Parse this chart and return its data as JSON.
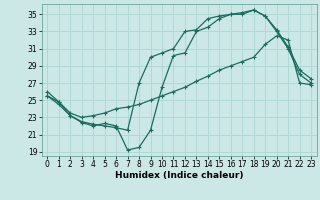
{
  "xlabel": "Humidex (Indice chaleur)",
  "bg_color": "#cce8e6",
  "grid_color": "#b0d8d5",
  "line_color": "#1a6b5e",
  "xlim": [
    -0.5,
    23.5
  ],
  "ylim": [
    18.5,
    36.2
  ],
  "xticks": [
    0,
    1,
    2,
    3,
    4,
    5,
    6,
    7,
    8,
    9,
    10,
    11,
    12,
    13,
    14,
    15,
    16,
    17,
    18,
    19,
    20,
    21,
    22,
    23
  ],
  "yticks": [
    19,
    21,
    23,
    25,
    27,
    29,
    31,
    33,
    35
  ],
  "line1_x": [
    0,
    1,
    2,
    3,
    4,
    5,
    6,
    7,
    8,
    9,
    10,
    11,
    12,
    13,
    14,
    15,
    16,
    17,
    18,
    19,
    20,
    21,
    22,
    23
  ],
  "line1_y": [
    26.0,
    24.8,
    23.2,
    22.5,
    22.2,
    22.0,
    21.8,
    21.5,
    27.0,
    30.0,
    30.5,
    31.0,
    33.0,
    33.2,
    34.5,
    34.8,
    35.0,
    35.2,
    35.5,
    34.8,
    33.2,
    31.2,
    28.5,
    27.5
  ],
  "line2_x": [
    0,
    1,
    2,
    3,
    4,
    5,
    6,
    7,
    8,
    9,
    10,
    11,
    12,
    13,
    14,
    15,
    16,
    17,
    18,
    19,
    20,
    21,
    22,
    23
  ],
  "line2_y": [
    25.5,
    24.5,
    23.2,
    22.4,
    22.0,
    22.3,
    22.0,
    19.2,
    19.5,
    21.5,
    26.5,
    30.2,
    30.5,
    33.0,
    33.5,
    34.5,
    35.0,
    35.0,
    35.5,
    34.8,
    33.0,
    31.0,
    28.0,
    27.0
  ],
  "line3_x": [
    0,
    1,
    2,
    3,
    4,
    5,
    6,
    7,
    8,
    9,
    10,
    11,
    12,
    13,
    14,
    15,
    16,
    17,
    18,
    19,
    20,
    21,
    22,
    23
  ],
  "line3_y": [
    25.5,
    24.8,
    23.5,
    23.0,
    23.2,
    23.5,
    24.0,
    24.2,
    24.5,
    25.0,
    25.5,
    26.0,
    26.5,
    27.2,
    27.8,
    28.5,
    29.0,
    29.5,
    30.0,
    31.5,
    32.5,
    32.0,
    27.0,
    26.8
  ],
  "marker": "+",
  "markersize": 3,
  "linewidth": 0.9,
  "label_fontsize": 6.5,
  "tick_fontsize": 5.5
}
